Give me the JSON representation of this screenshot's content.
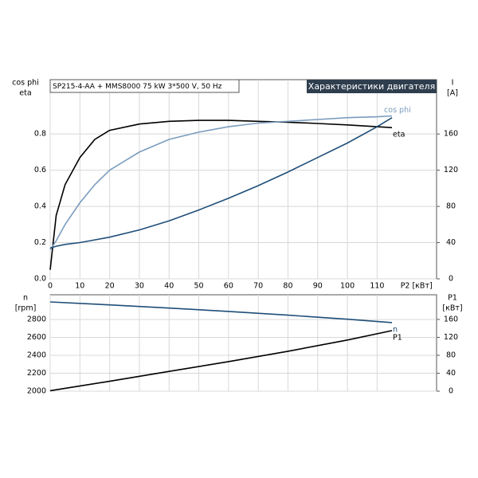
{
  "chart_data": [
    {
      "type": "line",
      "title": "Характеристики двигателя",
      "subtitle": "SP215-4-AA + MMS8000   75 kW   3*500 V, 50 Hz",
      "xlabel": "P2 [кВт]",
      "ylabel_lines": [
        "cos phi",
        "eta"
      ],
      "y2label_lines": [
        "I",
        "[A]"
      ],
      "x": [
        0,
        2,
        5,
        10,
        15,
        20,
        30,
        40,
        50,
        60,
        70,
        80,
        90,
        100,
        110,
        115
      ],
      "xlim": [
        0,
        130
      ],
      "xticks": [
        0,
        10,
        20,
        30,
        40,
        50,
        60,
        70,
        80,
        90,
        100,
        110
      ],
      "ylim": [
        0,
        1.1
      ],
      "yticks": [
        {
          "value": 0,
          "label": "0.0"
        },
        0.2,
        0.4,
        0.6,
        0.8
      ],
      "y2lim": [
        0,
        220
      ],
      "y2ticks": [
        0,
        40,
        80,
        120,
        160
      ],
      "grid": true,
      "series": [
        {
          "name": "eta",
          "color": "#000000",
          "values": [
            0.05,
            0.35,
            0.52,
            0.67,
            0.77,
            0.82,
            0.855,
            0.87,
            0.875,
            0.875,
            0.87,
            0.865,
            0.858,
            0.85,
            0.84,
            0.835
          ]
        },
        {
          "name": "cos phi",
          "color": "#7b9cbd",
          "values": [
            0.16,
            0.21,
            0.3,
            0.42,
            0.52,
            0.6,
            0.7,
            0.77,
            0.81,
            0.84,
            0.86,
            0.87,
            0.88,
            0.89,
            0.895,
            0.9
          ]
        },
        {
          "color": "#1f4e79",
          "axis": "y2",
          "values": [
            34,
            36,
            38,
            40,
            43,
            46,
            54,
            64,
            76,
            89,
            103,
            118,
            134,
            150,
            168,
            178
          ]
        }
      ]
    },
    {
      "type": "line",
      "ylabel_lines": [
        "n",
        "[rpm]"
      ],
      "y2label_lines": [
        "P1",
        "[кВт]"
      ],
      "x": [
        0,
        20,
        40,
        60,
        80,
        100,
        115
      ],
      "ylim": [
        2000,
        3075
      ],
      "yticks": [
        2000,
        2200,
        2400,
        2600,
        2800
      ],
      "y2lim": [
        0,
        215
      ],
      "y2ticks": [
        0,
        40,
        80,
        120,
        160
      ],
      "grid": true,
      "series": [
        {
          "name": "n",
          "color": "#1f4e79",
          "values": [
            2995,
            2962,
            2927,
            2889,
            2848,
            2802,
            2765
          ]
        },
        {
          "name": "P1",
          "color": "#000000",
          "axis": "y2",
          "values": [
            1,
            22,
            44,
            66,
            89,
            114,
            135
          ]
        }
      ]
    }
  ]
}
